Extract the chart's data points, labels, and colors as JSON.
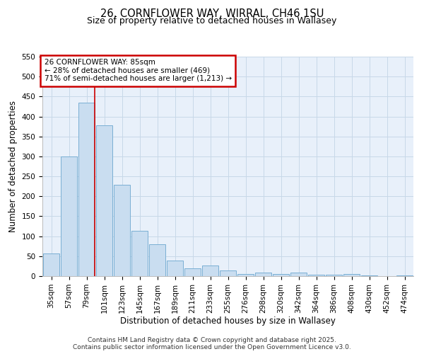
{
  "title_line1": "26, CORNFLOWER WAY, WIRRAL, CH46 1SU",
  "title_line2": "Size of property relative to detached houses in Wallasey",
  "xlabel": "Distribution of detached houses by size in Wallasey",
  "ylabel": "Number of detached properties",
  "categories": [
    "35sqm",
    "57sqm",
    "79sqm",
    "101sqm",
    "123sqm",
    "145sqm",
    "167sqm",
    "189sqm",
    "211sqm",
    "233sqm",
    "255sqm",
    "276sqm",
    "298sqm",
    "320sqm",
    "342sqm",
    "364sqm",
    "386sqm",
    "408sqm",
    "430sqm",
    "452sqm",
    "474sqm"
  ],
  "values": [
    57,
    300,
    435,
    378,
    228,
    113,
    80,
    39,
    19,
    27,
    15,
    6,
    9,
    6,
    8,
    4,
    3,
    5,
    1,
    0,
    2
  ],
  "bar_color": "#c9ddf0",
  "bar_edge_color": "#7aafd4",
  "grid_color": "#c8d8e8",
  "background_color": "#e8f0fa",
  "annotation_text": "26 CORNFLOWER WAY: 85sqm\n← 28% of detached houses are smaller (469)\n71% of semi-detached houses are larger (1,213) →",
  "annotation_box_color": "#ffffff",
  "annotation_box_edge": "#cc0000",
  "vline_x_index": 2,
  "vline_color": "#cc0000",
  "ylim": [
    0,
    550
  ],
  "yticks": [
    0,
    50,
    100,
    150,
    200,
    250,
    300,
    350,
    400,
    450,
    500,
    550
  ],
  "footer_line1": "Contains HM Land Registry data © Crown copyright and database right 2025.",
  "footer_line2": "Contains public sector information licensed under the Open Government Licence v3.0.",
  "title_fontsize": 10.5,
  "subtitle_fontsize": 9,
  "axis_label_fontsize": 8.5,
  "tick_fontsize": 7.5,
  "footer_fontsize": 6.5,
  "annotation_fontsize": 7.5
}
